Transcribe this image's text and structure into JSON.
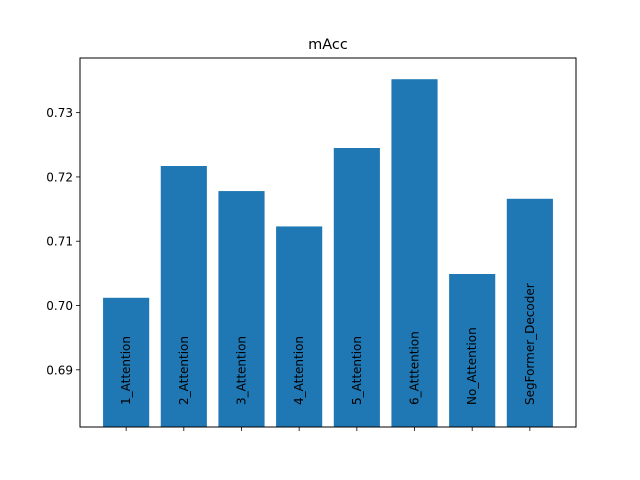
{
  "chart_data": {
    "type": "bar",
    "title": "mAcc",
    "xlabel": "",
    "ylabel": "",
    "categories": [
      "1_Attention",
      "2_Attention",
      "3_Attention",
      "4_Attention",
      "5_Attention",
      "6_Atttention",
      "No_Attention",
      "SegFormer_Decoder"
    ],
    "values": [
      0.7012,
      0.7217,
      0.7178,
      0.7123,
      0.7245,
      0.7352,
      0.7049,
      0.7166
    ],
    "ylim": [
      0.6811,
      0.7385
    ],
    "yticks": [
      0.69,
      0.7,
      0.71,
      0.72,
      0.73
    ],
    "ytick_labels": [
      "0.69",
      "0.70",
      "0.71",
      "0.72",
      "0.73"
    ],
    "bar_color": "#1f77b4",
    "bar_labels_inside": true,
    "grid": false,
    "legend": false
  }
}
